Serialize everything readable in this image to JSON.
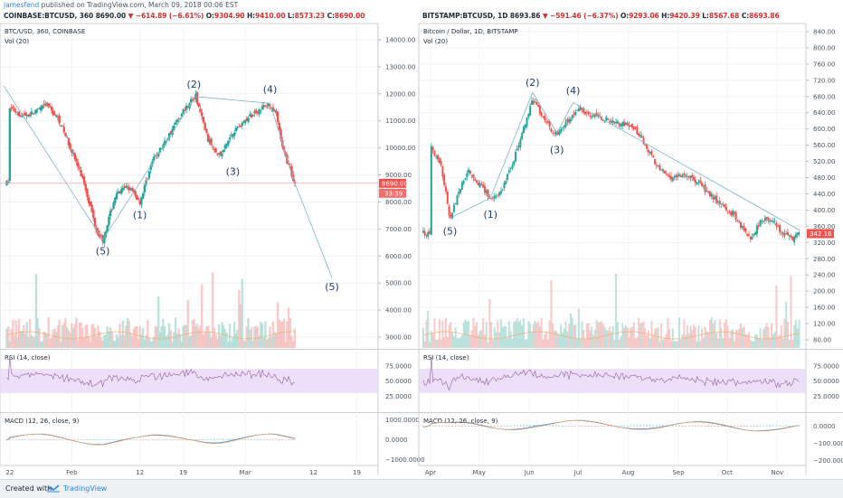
{
  "header": {
    "author": "jamesfend",
    "published": "published on TradingView.com, March 09, 2018 00:06 EST"
  },
  "footer": {
    "created_with": "Created with",
    "brand": "TradingView"
  },
  "chart_data": [
    {
      "type": "candlestick",
      "symbol_line": {
        "symbol": "COINBASE:BTCUSD, 360",
        "last": "8690.00",
        "change": "−614.89 (−6.61%)",
        "o": "9304.90",
        "h": "9410.00",
        "l": "8573.23",
        "c": "8690.00"
      },
      "title": "BTC/USD, 360, COINBASE",
      "volume_label": "Vol (20)",
      "price_badge": "8690.00",
      "countdown_badge": "33:39",
      "y_ticks": [
        "14000.00",
        "13000.00",
        "12000.00",
        "11000.00",
        "10000.00",
        "9000.00",
        "8000.00",
        "7000.00",
        "6000.00",
        "5000.00",
        "4000.00",
        "3000.00"
      ],
      "x_ticks": [
        "22",
        "Feb",
        "12",
        "19",
        "Mar",
        "19"
      ],
      "extra_x_ticks": [
        "12"
      ],
      "price_path": [
        [
          "01-22",
          11500
        ],
        [
          "01-24",
          11200
        ],
        [
          "01-26",
          11300
        ],
        [
          "01-28",
          11600
        ],
        [
          "01-30",
          11000
        ],
        [
          "02-01",
          9900
        ],
        [
          "02-03",
          8700
        ],
        [
          "02-05",
          6950
        ],
        [
          "02-06",
          6600
        ],
        [
          "02-08",
          8200
        ],
        [
          "02-10",
          8600
        ],
        [
          "02-12",
          8000
        ],
        [
          "02-14",
          9500
        ],
        [
          "02-16",
          10200
        ],
        [
          "02-18",
          11000
        ],
        [
          "02-20",
          11700
        ],
        [
          "02-21",
          11900
        ],
        [
          "02-23",
          10300
        ],
        [
          "02-25",
          9700
        ],
        [
          "02-27",
          10600
        ],
        [
          "03-01",
          11000
        ],
        [
          "03-03",
          11400
        ],
        [
          "03-05",
          11600
        ],
        [
          "03-06",
          11200
        ],
        [
          "03-07",
          10000
        ],
        [
          "03-09",
          8690
        ]
      ],
      "wave_labels": [
        "(5)",
        "(1)",
        "(2)",
        "(3)",
        "(4)",
        "(5)"
      ],
      "projection": {
        "from": [
          "03-09",
          8700
        ],
        "to": [
          "03-15",
          5200
        ]
      },
      "rsi": {
        "label": "RSI (14, close)",
        "ticks": [
          "75.0000",
          "50.0000",
          "25.0000"
        ],
        "band": [
          30,
          70
        ]
      },
      "macd": {
        "label": "MACD (12, 26, close, 9)",
        "ticks": [
          "1000.0000",
          "0.0000",
          "−1000.0000"
        ]
      }
    },
    {
      "type": "candlestick",
      "symbol_line": {
        "symbol": "BITSTAMP:BTCUSD, 1D",
        "last": "8693.86",
        "change": "−591.46 (−6.37%)",
        "o": "9293.06",
        "h": "9420.39",
        "l": "8567.68",
        "c": "8693.86"
      },
      "title": "Bitcoin / Dollar, 1D, BITSTAMP",
      "volume_label": "Vol (20)",
      "price_badge": "342.16",
      "y_ticks": [
        "840.00",
        "800.00",
        "760.00",
        "720.00",
        "680.00",
        "640.00",
        "600.00",
        "560.00",
        "520.00",
        "480.00",
        "440.00",
        "400.00",
        "360.00",
        "320.00",
        "280.00",
        "240.00",
        "200.00",
        "160.00",
        "120.00",
        "80.00"
      ],
      "x_ticks": [
        "Apr",
        "May",
        "Jun",
        "Jul",
        "Aug",
        "Sep",
        "Oct",
        "Nov"
      ],
      "price_path": [
        [
          "04-01",
          560
        ],
        [
          "04-08",
          500
        ],
        [
          "04-13",
          380
        ],
        [
          "04-18",
          440
        ],
        [
          "04-24",
          500
        ],
        [
          "05-02",
          460
        ],
        [
          "05-08",
          430
        ],
        [
          "05-14",
          440
        ],
        [
          "05-22",
          520
        ],
        [
          "05-31",
          630
        ],
        [
          "06-03",
          670
        ],
        [
          "06-08",
          640
        ],
        [
          "06-14",
          600
        ],
        [
          "06-18",
          590
        ],
        [
          "06-25",
          620
        ],
        [
          "07-02",
          650
        ],
        [
          "07-12",
          630
        ],
        [
          "07-22",
          620
        ],
        [
          "07-30",
          610
        ],
        [
          "08-05",
          600
        ],
        [
          "08-12",
          560
        ],
        [
          "08-20",
          500
        ],
        [
          "08-28",
          480
        ],
        [
          "09-05",
          490
        ],
        [
          "09-12",
          470
        ],
        [
          "09-20",
          440
        ],
        [
          "09-28",
          410
        ],
        [
          "10-05",
          390
        ],
        [
          "10-10",
          360
        ],
        [
          "10-16",
          330
        ],
        [
          "10-22",
          380
        ],
        [
          "10-30",
          370
        ],
        [
          "11-04",
          340
        ],
        [
          "11-10",
          330
        ],
        [
          "11-15",
          342
        ]
      ],
      "wave_labels": [
        "(5)",
        "(1)",
        "(2)",
        "(3)",
        "(4)"
      ],
      "rsi": {
        "label": "RSI (14, close)",
        "ticks": [
          "75.0000",
          "50.0000",
          "25.0000"
        ],
        "band": [
          30,
          70
        ]
      },
      "macd": {
        "label": "MACD (12, 26, close, 9)",
        "ticks": [
          "0.0000",
          "−100.0000",
          "−200.0000"
        ]
      }
    }
  ]
}
